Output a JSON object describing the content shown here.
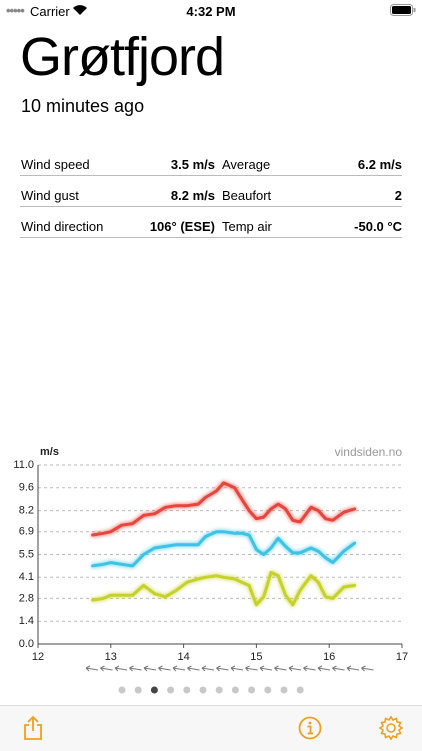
{
  "status_bar": {
    "carrier": "Carrier",
    "time": "4:32 PM"
  },
  "header": {
    "title": "Grøtfjord",
    "subtitle": "10 minutes ago"
  },
  "stats": {
    "rows": [
      [
        {
          "label": "Wind speed",
          "value": "3.5 m/s"
        },
        {
          "label": "Average",
          "value": "6.2 m/s"
        }
      ],
      [
        {
          "label": "Wind gust",
          "value": "8.2 m/s"
        },
        {
          "label": "Beaufort",
          "value": "2"
        }
      ],
      [
        {
          "label": "Wind direction",
          "value": "106° (ESE)"
        },
        {
          "label": "Temp air",
          "value": "-50.0 °C"
        }
      ]
    ]
  },
  "chart_data": {
    "type": "line",
    "y_label": "m/s",
    "annotation": "vindsiden.no",
    "x": [
      12.75,
      12.9,
      13.0,
      13.15,
      13.3,
      13.45,
      13.6,
      13.75,
      13.9,
      14.05,
      14.2,
      14.3,
      14.45,
      14.55,
      14.7,
      14.8,
      14.9,
      15.0,
      15.1,
      15.2,
      15.3,
      15.4,
      15.5,
      15.6,
      15.75,
      15.85,
      15.95,
      16.05,
      16.2,
      16.35
    ],
    "series": [
      {
        "color": "#e8453c",
        "values": [
          6.7,
          6.8,
          6.9,
          7.3,
          7.4,
          7.9,
          8.0,
          8.4,
          8.5,
          8.5,
          8.6,
          9.0,
          9.4,
          9.9,
          9.6,
          8.9,
          8.2,
          7.7,
          7.8,
          8.3,
          8.6,
          8.3,
          7.6,
          7.5,
          8.4,
          8.2,
          7.7,
          7.6,
          8.1,
          8.3
        ]
      },
      {
        "color": "#3ec3e6",
        "values": [
          4.8,
          4.9,
          5.0,
          4.9,
          4.8,
          5.5,
          5.9,
          6.0,
          6.1,
          6.1,
          6.1,
          6.6,
          6.9,
          6.9,
          6.8,
          6.8,
          6.7,
          5.8,
          5.5,
          5.9,
          6.5,
          6.0,
          5.6,
          5.6,
          5.9,
          5.7,
          5.3,
          5.0,
          5.7,
          6.2
        ]
      },
      {
        "color": "#c6d12a",
        "values": [
          2.7,
          2.8,
          3.0,
          3.0,
          3.0,
          3.6,
          3.1,
          2.9,
          3.3,
          3.8,
          4.0,
          4.1,
          4.2,
          4.1,
          4.0,
          3.8,
          3.6,
          2.4,
          2.9,
          4.4,
          4.2,
          3.0,
          2.4,
          3.3,
          4.2,
          3.8,
          2.9,
          2.8,
          3.5,
          3.6
        ]
      }
    ],
    "xlim": [
      12,
      17
    ],
    "xticks": [
      12,
      13,
      14,
      15,
      16,
      17
    ],
    "ylim": [
      0,
      11
    ],
    "yticks": [
      {
        "value": 0,
        "label": "0.0"
      },
      1.4,
      2.8,
      4.1,
      5.5,
      6.9,
      8.2,
      9.6,
      {
        "value": 11,
        "label": "11.0"
      }
    ],
    "grid": true
  }
}
